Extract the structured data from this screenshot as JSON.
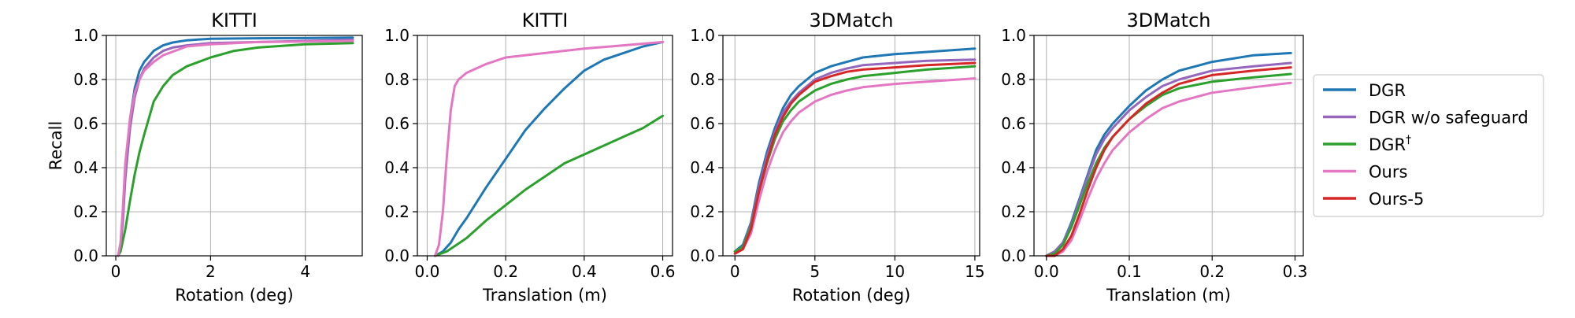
{
  "chart_data": [
    {
      "type": "line",
      "title": "KITTI",
      "xlabel": "Rotation (deg)",
      "ylabel": "Recall",
      "xlim": [
        -0.2,
        5.2
      ],
      "ylim": [
        0,
        1
      ],
      "xticks": [
        0,
        2,
        4
      ],
      "xtick_labels": [
        "0",
        "2",
        "4"
      ],
      "yticks": [
        0,
        0.2,
        0.4,
        0.6,
        0.8,
        1.0
      ],
      "ytick_labels": [
        "0.0",
        "0.2",
        "0.4",
        "0.6",
        "0.8",
        "1.0"
      ],
      "grid": true,
      "series": [
        {
          "name": "DGR",
          "x": [
            0.05,
            0.1,
            0.15,
            0.2,
            0.3,
            0.4,
            0.5,
            0.6,
            0.8,
            1.0,
            1.2,
            1.5,
            2.0,
            3.0,
            4.0,
            5.0
          ],
          "y": [
            0,
            0.05,
            0.2,
            0.4,
            0.62,
            0.76,
            0.84,
            0.88,
            0.93,
            0.955,
            0.968,
            0.978,
            0.985,
            0.987,
            0.988,
            0.99
          ]
        },
        {
          "name": "DGR w/o safeguard",
          "x": [
            0.05,
            0.1,
            0.15,
            0.2,
            0.3,
            0.4,
            0.5,
            0.6,
            0.8,
            1.0,
            1.2,
            1.5,
            2.0,
            3.0,
            4.0,
            5.0
          ],
          "y": [
            0,
            0.04,
            0.16,
            0.35,
            0.58,
            0.72,
            0.8,
            0.85,
            0.9,
            0.93,
            0.945,
            0.955,
            0.965,
            0.97,
            0.975,
            0.98
          ]
        },
        {
          "name": "DGR†",
          "x": [
            0.05,
            0.1,
            0.2,
            0.3,
            0.4,
            0.5,
            0.6,
            0.8,
            1.0,
            1.2,
            1.5,
            2.0,
            2.5,
            3.0,
            4.0,
            5.0
          ],
          "y": [
            0,
            0.02,
            0.12,
            0.25,
            0.37,
            0.47,
            0.55,
            0.7,
            0.77,
            0.82,
            0.86,
            0.9,
            0.93,
            0.945,
            0.96,
            0.965
          ]
        },
        {
          "name": "Ours",
          "x": [
            0.05,
            0.1,
            0.15,
            0.2,
            0.3,
            0.4,
            0.5,
            0.6,
            0.8,
            1.0,
            1.5,
            2.0,
            3.0,
            4.0,
            5.0
          ],
          "y": [
            0,
            0.06,
            0.22,
            0.42,
            0.62,
            0.74,
            0.8,
            0.84,
            0.88,
            0.91,
            0.95,
            0.96,
            0.97,
            0.972,
            0.975
          ]
        }
      ]
    },
    {
      "type": "line",
      "title": "KITTI",
      "xlabel": "Translation (m)",
      "ylabel": "",
      "xlim": [
        -0.025,
        0.625
      ],
      "ylim": [
        0,
        1
      ],
      "xticks": [
        0.0,
        0.2,
        0.4,
        0.6
      ],
      "xtick_labels": [
        "0.0",
        "0.2",
        "0.4",
        "0.6"
      ],
      "yticks": [
        0,
        0.2,
        0.4,
        0.6,
        0.8,
        1.0
      ],
      "ytick_labels": [
        "0.0",
        "0.2",
        "0.4",
        "0.6",
        "0.8",
        "1.0"
      ],
      "grid": true,
      "series": [
        {
          "name": "DGR",
          "x": [
            0.02,
            0.04,
            0.06,
            0.08,
            0.1,
            0.15,
            0.2,
            0.25,
            0.3,
            0.35,
            0.4,
            0.45,
            0.5,
            0.55,
            0.6
          ],
          "y": [
            0,
            0.02,
            0.06,
            0.12,
            0.17,
            0.31,
            0.44,
            0.57,
            0.67,
            0.76,
            0.84,
            0.89,
            0.92,
            0.95,
            0.97
          ]
        },
        {
          "name": "DGR†",
          "x": [
            0.02,
            0.05,
            0.1,
            0.15,
            0.2,
            0.25,
            0.3,
            0.35,
            0.4,
            0.45,
            0.5,
            0.55,
            0.6
          ],
          "y": [
            0,
            0.02,
            0.08,
            0.16,
            0.23,
            0.3,
            0.36,
            0.42,
            0.46,
            0.5,
            0.54,
            0.58,
            0.635
          ]
        },
        {
          "name": "Ours",
          "x": [
            0.02,
            0.03,
            0.04,
            0.05,
            0.06,
            0.07,
            0.08,
            0.1,
            0.15,
            0.2,
            0.3,
            0.4,
            0.5,
            0.6
          ],
          "y": [
            0,
            0.05,
            0.2,
            0.45,
            0.66,
            0.77,
            0.8,
            0.83,
            0.87,
            0.9,
            0.92,
            0.94,
            0.955,
            0.97
          ]
        }
      ]
    },
    {
      "type": "line",
      "title": "3DMatch",
      "xlabel": "Rotation (deg)",
      "ylabel": "",
      "xlim": [
        -0.75,
        15.3
      ],
      "ylim": [
        0,
        1
      ],
      "xticks": [
        0,
        5,
        10,
        15
      ],
      "xtick_labels": [
        "0",
        "5",
        "10",
        "15"
      ],
      "yticks": [
        0,
        0.2,
        0.4,
        0.6,
        0.8,
        1.0
      ],
      "ytick_labels": [
        "0.0",
        "0.2",
        "0.4",
        "0.6",
        "0.8",
        "1.0"
      ],
      "grid": true,
      "series": [
        {
          "name": "DGR",
          "x": [
            0,
            0.5,
            1,
            1.5,
            2,
            2.5,
            3,
            3.5,
            4,
            5,
            6,
            7,
            8,
            10,
            12,
            15
          ],
          "y": [
            0.02,
            0.05,
            0.15,
            0.33,
            0.47,
            0.58,
            0.67,
            0.73,
            0.77,
            0.83,
            0.86,
            0.88,
            0.9,
            0.915,
            0.925,
            0.94
          ]
        },
        {
          "name": "DGR w/o safeguard",
          "x": [
            0,
            0.5,
            1,
            1.5,
            2,
            2.5,
            3,
            3.5,
            4,
            5,
            6,
            7,
            8,
            10,
            12,
            15
          ],
          "y": [
            0.02,
            0.04,
            0.14,
            0.31,
            0.45,
            0.56,
            0.65,
            0.7,
            0.74,
            0.8,
            0.83,
            0.85,
            0.865,
            0.875,
            0.885,
            0.89
          ]
        },
        {
          "name": "DGR†",
          "x": [
            0,
            0.5,
            1,
            1.5,
            2,
            2.5,
            3,
            3.5,
            4,
            5,
            6,
            7,
            8,
            10,
            12,
            15
          ],
          "y": [
            0.02,
            0.04,
            0.13,
            0.29,
            0.42,
            0.53,
            0.61,
            0.66,
            0.7,
            0.75,
            0.78,
            0.8,
            0.815,
            0.83,
            0.845,
            0.86
          ]
        },
        {
          "name": "Ours",
          "x": [
            0,
            0.5,
            1,
            1.5,
            2,
            2.5,
            3,
            3.5,
            4,
            5,
            6,
            7,
            8,
            10,
            12,
            15
          ],
          "y": [
            0.01,
            0.03,
            0.1,
            0.25,
            0.38,
            0.48,
            0.56,
            0.61,
            0.65,
            0.7,
            0.73,
            0.75,
            0.765,
            0.78,
            0.79,
            0.805
          ]
        },
        {
          "name": "Ours-5",
          "x": [
            0,
            0.5,
            1,
            1.5,
            2,
            2.5,
            3,
            3.5,
            4,
            5,
            6,
            7,
            8,
            10,
            12,
            15
          ],
          "y": [
            0.01,
            0.03,
            0.12,
            0.29,
            0.43,
            0.55,
            0.63,
            0.69,
            0.73,
            0.79,
            0.815,
            0.835,
            0.845,
            0.855,
            0.865,
            0.875
          ]
        }
      ]
    },
    {
      "type": "line",
      "title": "3DMatch",
      "xlabel": "Translation (m)",
      "ylabel": "",
      "xlim": [
        -0.015,
        0.31
      ],
      "ylim": [
        0,
        1
      ],
      "xticks": [
        0.0,
        0.1,
        0.2,
        0.3
      ],
      "xtick_labels": [
        "0.0",
        "0.1",
        "0.2",
        "0.3"
      ],
      "yticks": [
        0,
        0.2,
        0.4,
        0.6,
        0.8,
        1.0
      ],
      "ytick_labels": [
        "0.0",
        "0.2",
        "0.4",
        "0.6",
        "0.8",
        "1.0"
      ],
      "grid": true,
      "series": [
        {
          "name": "DGR",
          "x": [
            0,
            0.01,
            0.02,
            0.03,
            0.04,
            0.05,
            0.06,
            0.07,
            0.08,
            0.1,
            0.12,
            0.14,
            0.16,
            0.2,
            0.25,
            0.295
          ],
          "y": [
            0,
            0.02,
            0.06,
            0.15,
            0.26,
            0.37,
            0.48,
            0.55,
            0.6,
            0.68,
            0.75,
            0.8,
            0.84,
            0.88,
            0.91,
            0.92
          ]
        },
        {
          "name": "DGR w/o safeguard",
          "x": [
            0,
            0.01,
            0.02,
            0.03,
            0.04,
            0.05,
            0.06,
            0.07,
            0.08,
            0.1,
            0.12,
            0.14,
            0.16,
            0.2,
            0.25,
            0.295
          ],
          "y": [
            0,
            0.02,
            0.06,
            0.14,
            0.25,
            0.36,
            0.46,
            0.53,
            0.58,
            0.66,
            0.72,
            0.77,
            0.8,
            0.84,
            0.86,
            0.875
          ]
        },
        {
          "name": "DGR†",
          "x": [
            0,
            0.01,
            0.02,
            0.03,
            0.04,
            0.05,
            0.06,
            0.07,
            0.08,
            0.1,
            0.12,
            0.14,
            0.16,
            0.2,
            0.25,
            0.295
          ],
          "y": [
            0,
            0.01,
            0.05,
            0.13,
            0.23,
            0.33,
            0.42,
            0.49,
            0.54,
            0.62,
            0.68,
            0.73,
            0.76,
            0.79,
            0.81,
            0.825
          ]
        },
        {
          "name": "Ours",
          "x": [
            0,
            0.01,
            0.02,
            0.03,
            0.04,
            0.05,
            0.06,
            0.07,
            0.08,
            0.1,
            0.12,
            0.14,
            0.16,
            0.2,
            0.25,
            0.295
          ],
          "y": [
            0,
            0,
            0.02,
            0.07,
            0.16,
            0.26,
            0.35,
            0.42,
            0.48,
            0.56,
            0.62,
            0.67,
            0.7,
            0.74,
            0.765,
            0.785
          ]
        },
        {
          "name": "Ours-5",
          "x": [
            0,
            0.01,
            0.02,
            0.03,
            0.04,
            0.05,
            0.06,
            0.07,
            0.08,
            0.1,
            0.12,
            0.14,
            0.16,
            0.2,
            0.25,
            0.295
          ],
          "y": [
            0,
            0,
            0.03,
            0.09,
            0.19,
            0.3,
            0.4,
            0.48,
            0.54,
            0.62,
            0.69,
            0.74,
            0.78,
            0.82,
            0.84,
            0.855
          ]
        }
      ]
    }
  ],
  "legend": {
    "position": "right",
    "entries": [
      {
        "name": "DGR",
        "color": "#1f77b4"
      },
      {
        "name": "DGR w/o safeguard",
        "color": "#9467bd"
      },
      {
        "name": "DGR",
        "sup": "†",
        "color": "#2ca02c"
      },
      {
        "name": "Ours",
        "color": "#e377c2"
      },
      {
        "name": "Ours-5",
        "color": "#d62728"
      }
    ]
  },
  "series_colors": {
    "DGR": "#1f77b4",
    "DGR w/o safeguard": "#9467bd",
    "DGR†": "#2ca02c",
    "Ours": "#e377c2",
    "Ours-5": "#d62728"
  }
}
